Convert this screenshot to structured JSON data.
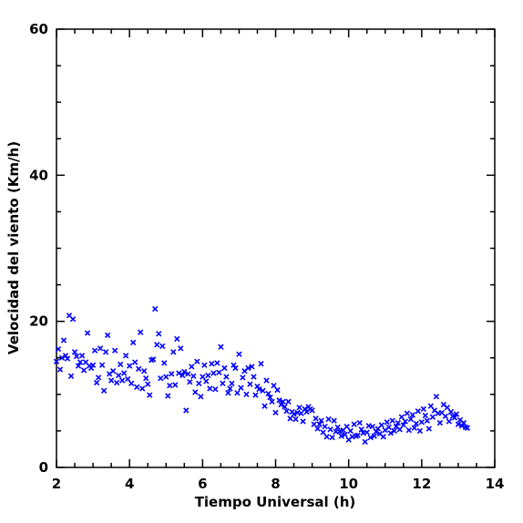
{
  "chart_data": {
    "type": "scatter",
    "title": "",
    "xlabel": "Tiempo Universal (h)",
    "ylabel": "Velocidad del viento (Km/h)",
    "xlim": [
      2,
      14
    ],
    "ylim": [
      0,
      60
    ],
    "x_ticks": [
      "2",
      "4",
      "6",
      "8",
      "10",
      "12",
      "14"
    ],
    "y_ticks": [
      "0",
      "20",
      "40",
      "60"
    ],
    "marker": "x",
    "grid": false,
    "legend": "none",
    "color": "#0000ff",
    "series": [
      {
        "x": [
          2.0,
          2.05,
          2.1,
          2.15,
          2.2,
          2.25,
          2.3,
          2.35,
          2.4,
          2.45,
          2.5,
          2.55,
          2.6,
          2.65,
          2.7,
          2.75,
          2.8,
          2.85,
          2.9,
          2.95,
          3.0,
          3.05,
          3.1,
          3.15,
          3.2,
          3.25,
          3.3,
          3.35,
          3.4,
          3.45,
          3.5,
          3.55,
          3.6,
          3.65,
          3.7,
          3.75,
          3.8,
          3.85,
          3.9,
          3.95,
          4.0,
          4.05,
          4.1,
          4.15,
          4.2,
          4.25,
          4.3,
          4.35,
          4.4,
          4.45,
          4.5,
          4.55,
          4.6,
          4.65,
          4.7,
          4.75,
          4.8,
          4.85,
          4.9,
          4.95,
          5.0,
          5.05,
          5.1,
          5.15,
          5.2,
          5.25,
          5.3,
          5.35,
          5.4,
          5.45,
          5.5,
          5.55,
          5.6,
          5.65,
          5.7,
          5.75,
          5.8,
          5.85,
          5.9,
          5.95,
          6.0,
          6.05,
          6.1,
          6.15,
          6.2,
          6.25,
          6.3,
          6.35,
          6.4,
          6.45,
          6.5,
          6.55,
          6.6,
          6.65,
          6.7,
          6.75,
          6.8,
          6.85,
          6.9,
          6.95,
          7.0,
          7.05,
          7.1,
          7.15,
          7.2,
          7.25,
          7.3,
          7.35,
          7.4,
          7.45,
          7.5,
          7.55,
          7.6,
          7.65,
          7.7,
          7.75,
          7.8,
          7.85,
          7.9,
          7.95,
          8.0,
          8.05,
          8.1,
          8.15,
          8.2,
          8.25,
          8.3,
          8.35,
          8.4,
          8.45,
          8.5,
          8.55,
          8.6,
          8.65,
          8.7,
          8.75,
          8.8,
          8.85,
          8.9,
          8.95,
          9.0,
          9.05,
          9.1,
          9.15,
          9.2,
          9.25,
          9.3,
          9.35,
          9.4,
          9.45,
          9.5,
          9.55,
          9.6,
          9.65,
          9.7,
          9.75,
          9.8,
          9.85,
          9.9,
          9.95,
          10.0,
          10.05,
          10.1,
          10.15,
          10.2,
          10.25,
          10.3,
          10.35,
          10.4,
          10.45,
          10.5,
          10.55,
          10.6,
          10.65,
          10.7,
          10.75,
          10.8,
          10.85,
          10.9,
          10.95,
          11.0,
          11.05,
          11.1,
          11.15,
          11.2,
          11.25,
          11.3,
          11.35,
          11.4,
          11.45,
          11.5,
          11.55,
          11.6,
          11.65,
          11.7,
          11.75,
          11.8,
          11.85,
          11.9,
          11.95,
          12.0,
          12.05,
          12.1,
          12.15,
          12.2,
          12.25,
          12.3,
          12.35,
          12.4,
          12.45,
          12.5,
          12.55,
          12.6,
          12.65,
          12.7,
          12.75,
          12.8,
          12.85,
          12.9,
          12.95,
          13.0,
          13.05,
          13.1,
          13.15,
          13.2,
          13.25
        ],
        "y": [
          14.5,
          16.2,
          13.4,
          15.0,
          17.4,
          15.3,
          14.9,
          20.8,
          12.5,
          20.3,
          15.8,
          15.2,
          13.9,
          14.4,
          15.3,
          13.3,
          14.4,
          18.4,
          13.9,
          13.6,
          14.0,
          16.0,
          11.6,
          12.3,
          16.3,
          14.0,
          10.5,
          15.8,
          18.1,
          12.8,
          11.9,
          13.2,
          16.0,
          11.6,
          12.6,
          14.1,
          11.9,
          12.9,
          15.3,
          12.1,
          13.9,
          11.5,
          17.1,
          14.4,
          11.0,
          13.5,
          18.5,
          10.8,
          13.2,
          12.2,
          11.4,
          9.9,
          14.7,
          14.8,
          21.7,
          16.8,
          18.3,
          12.2,
          16.6,
          14.3,
          12.4,
          9.8,
          11.2,
          12.8,
          15.8,
          11.3,
          17.6,
          12.9,
          16.3,
          12.6,
          13.1,
          7.8,
          12.8,
          11.7,
          13.8,
          12.5,
          10.3,
          14.5,
          11.5,
          9.7,
          12.4,
          14.0,
          11.8,
          12.6,
          10.8,
          14.2,
          12.9,
          10.7,
          14.3,
          13.0,
          16.5,
          11.5,
          13.6,
          12.4,
          10.2,
          10.8,
          11.5,
          14.0,
          13.6,
          10.2,
          15.5,
          10.9,
          12.3,
          13.2,
          10.0,
          13.6,
          11.4,
          13.8,
          12.4,
          9.9,
          11.1,
          10.7,
          14.2,
          10.5,
          8.4,
          11.9,
          10.1,
          9.6,
          9.0,
          11.2,
          7.5,
          10.6,
          9.2,
          8.6,
          9.0,
          8.3,
          7.7,
          9.0,
          6.7,
          7.6,
          7.3,
          6.6,
          7.5,
          8.2,
          7.4,
          6.3,
          8.0,
          7.6,
          8.3,
          8.0,
          7.8,
          5.9,
          6.7,
          5.3,
          5.9,
          6.4,
          4.8,
          5.6,
          4.2,
          6.6,
          5.2,
          4.1,
          6.4,
          4.9,
          5.5,
          4.9,
          4.3,
          5.1,
          4.5,
          5.6,
          3.8,
          5.0,
          4.2,
          5.9,
          4.3,
          4.4,
          6.1,
          5.2,
          4.7,
          3.5,
          4.8,
          5.7,
          4.1,
          5.6,
          4.3,
          4.9,
          5.3,
          4.6,
          5.8,
          4.2,
          5.1,
          6.2,
          5.5,
          4.7,
          6.4,
          5.0,
          5.6,
          6.1,
          5.2,
          6.9,
          5.8,
          6.3,
          7.4,
          5.1,
          6.6,
          7.2,
          5.4,
          6.0,
          7.7,
          5.0,
          6.2,
          8.0,
          7.1,
          6.4,
          5.3,
          8.4,
          6.9,
          7.8,
          9.7,
          7.4,
          6.1,
          7.5,
          8.6,
          7.0,
          8.2,
          6.3,
          7.6,
          7.0,
          6.8,
          7.3,
          5.9,
          6.5,
          5.7,
          6.1,
          5.5,
          5.4
        ]
      }
    ]
  }
}
